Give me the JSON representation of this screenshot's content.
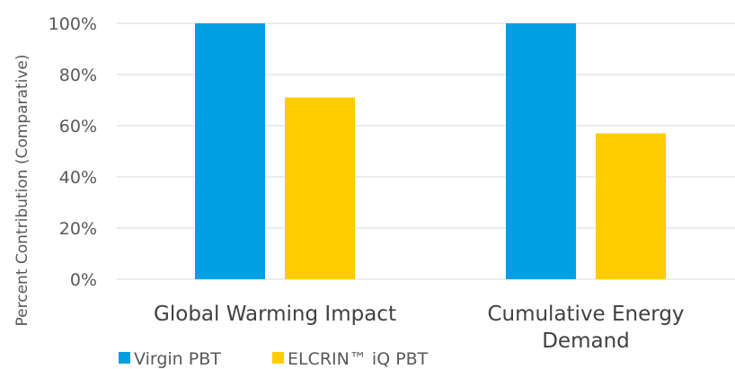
{
  "chart_data": {
    "type": "bar",
    "categories": [
      "Global Warming Impact",
      "Cumulative Energy Demand"
    ],
    "series": [
      {
        "name": "Virgin PBT",
        "values": [
          100,
          100
        ],
        "color": "#009FE3"
      },
      {
        "name": "ELCRIN™ iQ PBT",
        "values": [
          71,
          57
        ],
        "color": "#FFCC00"
      }
    ],
    "ylabel": "Percent Contribution (Comparative)",
    "xlabel": "",
    "ylim": [
      0,
      100
    ],
    "yticks": [
      "0%",
      "20%",
      "40%",
      "60%",
      "80%",
      "100%"
    ],
    "ytick_values": [
      0,
      20,
      40,
      60,
      80,
      100
    ],
    "grid": true,
    "legend": "bottom-left"
  }
}
